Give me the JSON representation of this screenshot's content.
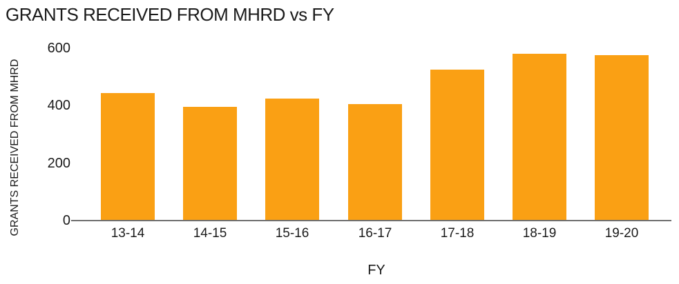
{
  "chart_data": {
    "type": "bar",
    "title": "GRANTS RECEIVED FROM MHRD vs FY",
    "xlabel": "FY",
    "ylabel": "GRANTS RECEIVED FROM MHRD",
    "categories": [
      "13-14",
      "14-15",
      "15-16",
      "16-17",
      "17-18",
      "18-19",
      "19-20"
    ],
    "values": [
      445,
      395,
      425,
      405,
      525,
      580,
      575
    ],
    "yticks": [
      0,
      200,
      400,
      600
    ],
    "ylim": [
      0,
      600
    ],
    "grid": false,
    "legend": false,
    "colors": {
      "bar": "#FAA014",
      "axis_line": "#6E6E6E",
      "text": "#1A1A1A"
    }
  }
}
